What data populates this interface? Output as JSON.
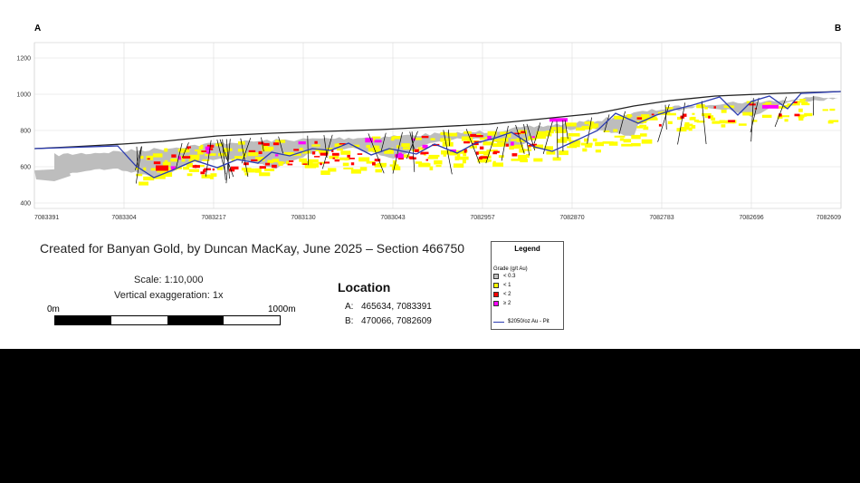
{
  "section": {
    "start_label": "A",
    "end_label": "B",
    "y_ticks": [
      "1200",
      "1000",
      "800",
      "600",
      "400"
    ],
    "x_ticks": [
      "7083391",
      "7083304",
      "7083217",
      "7083130",
      "7083043",
      "7082957",
      "7082870",
      "7082783",
      "7082696",
      "7082609"
    ],
    "colors": {
      "waste": "#bdbdbd",
      "lt1": "#ffff00",
      "lt2": "#ff0000",
      "ge2": "#ff00ff",
      "pit": "#2b3bb0",
      "topo": "#222222",
      "drill": "#000000"
    }
  },
  "caption": "Created for Banyan Gold, by Duncan MacKay, June 2025 – Section 466750",
  "scale": {
    "text": "Scale: 1:10,000",
    "vertical_exaggeration": "Vertical exaggeration: 1x",
    "bar_start": "0m",
    "bar_end": "1000m"
  },
  "location": {
    "title": "Location",
    "points": [
      {
        "key": "A:",
        "value": "465634, 7083391"
      },
      {
        "key": "B:",
        "value": "470066, 7082609"
      }
    ]
  },
  "legend": {
    "title": "Legend",
    "subtitle": "Grade (g/t Au)",
    "items": [
      {
        "label": "< 0.3",
        "color": "#bdbdbd"
      },
      {
        "label": "< 1",
        "color": "#ffff00"
      },
      {
        "label": "< 2",
        "color": "#ff0000"
      },
      {
        "label": "≥ 2",
        "color": "#ff00ff"
      }
    ],
    "pit_label": "$2050/oz Au - Pit"
  }
}
